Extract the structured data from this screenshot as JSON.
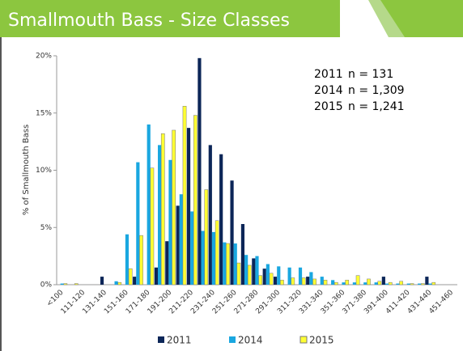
{
  "chart_data": {
    "type": "bar",
    "title": "Smallmouth Bass - Size Classes",
    "y_label": "% of Smallmouth Bass",
    "annotations": [
      {
        "year": "2011",
        "n": "n = 131"
      },
      {
        "year": "2014",
        "n": "n = 1,309"
      },
      {
        "year": "2015",
        "n": "n = 1,241"
      }
    ],
    "categories": [
      "<100",
      null,
      "111-120",
      null,
      "131-140",
      null,
      "151-160",
      null,
      "171-180",
      null,
      "191-200",
      null,
      "211-220",
      null,
      "231-240",
      null,
      "251-260",
      null,
      "271-280",
      null,
      "291-300",
      null,
      "311-320",
      null,
      "331-340",
      null,
      "351-360",
      null,
      "371-380",
      null,
      "391-400",
      null,
      "411-420",
      null,
      "431-440",
      null,
      "451-460"
    ],
    "series": [
      {
        "name": "2011",
        "color": "#0c2658",
        "values": [
          0,
          0,
          0,
          0,
          0.7,
          0,
          0,
          0.7,
          0,
          1.5,
          3.8,
          6.9,
          13.7,
          19.8,
          12.2,
          11.4,
          9.1,
          5.3,
          2.3,
          1.4,
          0.7,
          0,
          0,
          0.7,
          0,
          0,
          0,
          0,
          0,
          0,
          0.7,
          0,
          0,
          0,
          0.7,
          0,
          0
        ]
      },
      {
        "name": "2014",
        "color": "#1aa7e0",
        "values": [
          0.1,
          0,
          0,
          0,
          0,
          0.3,
          4.4,
          10.7,
          14.0,
          12.2,
          10.9,
          7.9,
          6.4,
          4.7,
          4.6,
          3.7,
          3.6,
          2.6,
          2.5,
          1.8,
          1.6,
          1.5,
          1.5,
          1.1,
          0.7,
          0.4,
          0.2,
          0.2,
          0.2,
          0.2,
          0.1,
          0.1,
          0.1,
          0.1,
          0.1,
          0,
          0
        ]
      },
      {
        "name": "2015",
        "color": "#ffff33",
        "values": [
          0.1,
          0.1,
          0,
          0,
          0,
          0.2,
          1.4,
          4.3,
          10.2,
          13.2,
          13.5,
          15.6,
          14.8,
          8.3,
          5.6,
          3.6,
          1.9,
          1.7,
          0.8,
          1.0,
          0.4,
          0.6,
          0.6,
          0.5,
          0.4,
          0.2,
          0.4,
          0.8,
          0.5,
          0.3,
          0.2,
          0.3,
          0.1,
          0.1,
          0.2,
          0,
          0
        ]
      }
    ],
    "ylim": [
      0,
      20
    ],
    "yticks": [
      {
        "value": 0,
        "label": "0%"
      },
      {
        "value": 5,
        "label": "5%"
      },
      {
        "value": 10,
        "label": "10%"
      },
      {
        "value": 15,
        "label": "15%"
      },
      {
        "value": 20,
        "label": "20%"
      }
    ],
    "legend": "bottom"
  }
}
